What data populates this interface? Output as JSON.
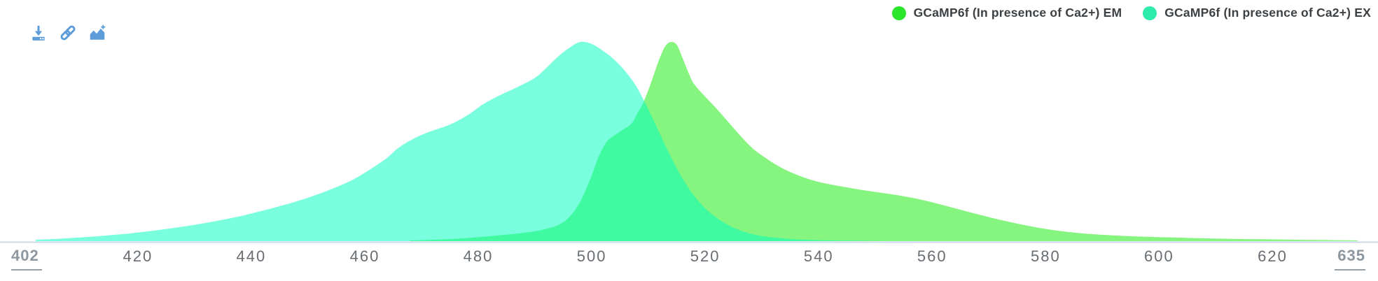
{
  "toolbar": {
    "color": "#5d9cd9",
    "buttons": [
      {
        "name": "download",
        "icon": "download-icon"
      },
      {
        "name": "permalink",
        "icon": "link-icon"
      },
      {
        "name": "add-spectrum",
        "icon": "add-chart-icon"
      }
    ]
  },
  "legend": {
    "position": "top-right",
    "text_color": "#3d4144",
    "items": [
      {
        "label": "GCaMP6f (In presence of Ca2+) EM",
        "color": "#2ae52a"
      },
      {
        "label": "GCaMP6f (In presence of Ca2+) EX",
        "color": "#2debaa"
      }
    ]
  },
  "axis": {
    "min_label": "402",
    "max_label": "635",
    "ticks": [
      "420",
      "440",
      "460",
      "480",
      "500",
      "520",
      "540",
      "560",
      "580",
      "600",
      "620"
    ],
    "tick_color": "#686d72",
    "endpoint_color": "#8d97a0",
    "line_color": "#ccd9e8"
  },
  "chart_data": {
    "type": "area",
    "title": "",
    "xlabel": "",
    "ylabel": "",
    "xlim": [
      402,
      635
    ],
    "ylim": [
      0,
      100
    ],
    "xticks": [
      420,
      440,
      460,
      480,
      500,
      520,
      540,
      560,
      580,
      600,
      620
    ],
    "grid": false,
    "legend_position": "top-right",
    "series": [
      {
        "name": "GCaMP6f (In presence of Ca2+) EM",
        "key": "em",
        "peak_nm": 514,
        "fill": "rgba(13,235,0,0.5)",
        "points": [
          [
            468,
            0.3
          ],
          [
            472,
            0.7
          ],
          [
            476,
            1.2
          ],
          [
            480,
            2.0
          ],
          [
            484,
            3.0
          ],
          [
            488,
            4.2
          ],
          [
            491,
            5.5
          ],
          [
            494,
            8.0
          ],
          [
            496,
            12.0
          ],
          [
            498,
            20.0
          ],
          [
            500,
            33.0
          ],
          [
            501,
            41.0
          ],
          [
            502,
            47.0
          ],
          [
            503,
            51.0
          ],
          [
            505,
            55.0
          ],
          [
            507,
            59.0
          ],
          [
            508,
            64.0
          ],
          [
            509,
            69.0
          ],
          [
            510,
            76.0
          ],
          [
            511,
            84.0
          ],
          [
            512,
            92.0
          ],
          [
            513,
            98.0
          ],
          [
            514,
            100.0
          ],
          [
            515,
            98.5
          ],
          [
            516,
            92.0
          ],
          [
            517,
            85.0
          ],
          [
            518,
            79.0
          ],
          [
            520,
            72.5
          ],
          [
            522,
            66.5
          ],
          [
            524,
            60.0
          ],
          [
            526,
            53.5
          ],
          [
            528,
            47.5
          ],
          [
            530,
            43.0
          ],
          [
            533,
            37.5
          ],
          [
            536,
            33.5
          ],
          [
            539,
            30.5
          ],
          [
            542,
            28.5
          ],
          [
            545,
            27.0
          ],
          [
            548,
            25.5
          ],
          [
            551,
            24.3
          ],
          [
            554,
            23.0
          ],
          [
            557,
            21.5
          ],
          [
            560,
            19.5
          ],
          [
            563,
            17.3
          ],
          [
            566,
            15.0
          ],
          [
            569,
            12.8
          ],
          [
            572,
            10.7
          ],
          [
            575,
            8.8
          ],
          [
            578,
            7.1
          ],
          [
            581,
            5.7
          ],
          [
            584,
            4.6
          ],
          [
            587,
            3.8
          ],
          [
            590,
            3.2
          ],
          [
            594,
            2.6
          ],
          [
            598,
            2.2
          ],
          [
            602,
            1.9
          ],
          [
            607,
            1.5
          ],
          [
            612,
            1.2
          ],
          [
            617,
            1.0
          ],
          [
            622,
            0.8
          ],
          [
            627,
            0.6
          ],
          [
            631,
            0.5
          ],
          [
            635,
            0.4
          ]
        ]
      },
      {
        "name": "GCaMP6f (In presence of Ca2+) EX",
        "key": "ex",
        "peak_nm": 498,
        "fill": "rgba(0,255,192,0.52)",
        "points": [
          [
            402,
            0.7
          ],
          [
            406,
            1.2
          ],
          [
            410,
            1.9
          ],
          [
            414,
            2.7
          ],
          [
            418,
            3.7
          ],
          [
            422,
            5.0
          ],
          [
            426,
            6.5
          ],
          [
            430,
            8.2
          ],
          [
            434,
            10.2
          ],
          [
            438,
            12.5
          ],
          [
            442,
            15.3
          ],
          [
            446,
            18.3
          ],
          [
            450,
            21.8
          ],
          [
            454,
            26.0
          ],
          [
            458,
            31.0
          ],
          [
            462,
            38.0
          ],
          [
            464,
            42.0
          ],
          [
            466,
            47.0
          ],
          [
            469,
            52.0
          ],
          [
            472,
            55.5
          ],
          [
            475,
            58.5
          ],
          [
            478,
            63.0
          ],
          [
            481,
            69.0
          ],
          [
            484,
            73.5
          ],
          [
            487,
            77.5
          ],
          [
            490,
            82.0
          ],
          [
            492,
            87.0
          ],
          [
            494,
            92.5
          ],
          [
            496,
            97.0
          ],
          [
            498,
            100.0
          ],
          [
            500,
            99.0
          ],
          [
            502,
            95.5
          ],
          [
            504,
            91.0
          ],
          [
            506,
            85.0
          ],
          [
            508,
            77.0
          ],
          [
            510,
            66.0
          ],
          [
            512,
            54.0
          ],
          [
            514,
            42.0
          ],
          [
            516,
            31.5
          ],
          [
            518,
            23.0
          ],
          [
            520,
            16.5
          ],
          [
            522,
            11.8
          ],
          [
            524,
            8.2
          ],
          [
            526,
            5.6
          ],
          [
            528,
            3.8
          ],
          [
            530,
            2.6
          ],
          [
            533,
            1.6
          ],
          [
            536,
            0.9
          ],
          [
            540,
            0.5
          ],
          [
            545,
            0.25
          ],
          [
            550,
            0.1
          ],
          [
            556,
            0.02
          ],
          [
            560,
            0
          ]
        ]
      }
    ]
  }
}
